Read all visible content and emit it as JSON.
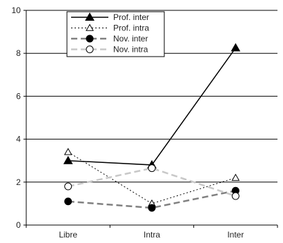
{
  "chart_data": {
    "type": "line",
    "title": "",
    "xlabel": "",
    "ylabel": "",
    "categories": [
      "Libre",
      "Intra",
      "Inter"
    ],
    "ylim": [
      0,
      10
    ],
    "yticks": [
      "0",
      "2",
      "4",
      "6",
      "8",
      "10"
    ],
    "grid": "horizontal",
    "legend_position": "top-left",
    "series": [
      {
        "name": "Prof. inter",
        "values": [
          3.0,
          2.8,
          8.25
        ],
        "color": "#000000",
        "dash": "solid",
        "marker": "filled-triangle"
      },
      {
        "name": "Prof. intra",
        "values": [
          3.4,
          1.0,
          2.2
        ],
        "color": "#000000",
        "dash": "dotted",
        "marker": "open-triangle"
      },
      {
        "name": "Nov. inter",
        "values": [
          1.1,
          0.8,
          1.6
        ],
        "color": "#808080",
        "dash": "dashed",
        "marker": "filled-circle"
      },
      {
        "name": "Nov. intra",
        "values": [
          1.8,
          2.65,
          1.35
        ],
        "color": "#c8c8c8",
        "dash": "dashed",
        "marker": "open-circle"
      }
    ]
  }
}
